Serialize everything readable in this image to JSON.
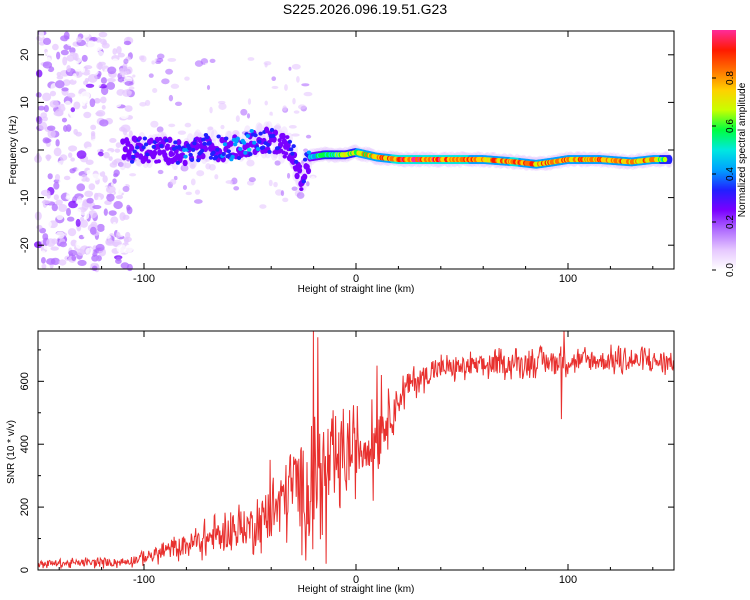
{
  "title": "S225.2026.096.19.51.G23",
  "colors": {
    "snr_line": "#e8302e",
    "colormap": [
      "#ffffff",
      "#e6c8ff",
      "#b06cff",
      "#7a00ff",
      "#2020ff",
      "#00a0ff",
      "#00e8e0",
      "#00ff40",
      "#c8ff00",
      "#ffd000",
      "#ff7000",
      "#ff1a00",
      "#ff2b9a"
    ]
  },
  "chart_data": [
    {
      "type": "heatmap",
      "name": "spectrogram",
      "xlabel": "Height of straight line (km)",
      "ylabel": "Frequency (Hz)",
      "xlim": [
        -150,
        150
      ],
      "ylim": [
        -25,
        25
      ],
      "xticks": [
        -100,
        0,
        100
      ],
      "yticks": [
        -20,
        -10,
        0,
        10,
        20
      ],
      "colorbar": {
        "label": "Normalized spectral amplitude",
        "range": [
          0,
          1
        ],
        "ticks": [
          0.0,
          0.2,
          0.4,
          0.6,
          0.8
        ]
      },
      "ridge": {
        "description": "dominant frequency ridge vs height",
        "x": [
          -110,
          -100,
          -90,
          -80,
          -70,
          -60,
          -50,
          -40,
          -35,
          -30,
          -26,
          -22,
          -15,
          -5,
          0,
          5,
          10,
          20,
          40,
          60,
          75,
          85,
          93,
          100,
          115,
          130,
          140,
          148
        ],
        "freq": [
          0,
          0,
          0,
          -0.5,
          1,
          0,
          1.5,
          2,
          1,
          0,
          -6,
          -1.5,
          -1,
          -1,
          -0.5,
          -1,
          -1.5,
          -2,
          -2,
          -2,
          -2.5,
          -3,
          -2.5,
          -2,
          -2,
          -2.5,
          -2,
          -2
        ],
        "amplitude": [
          0.25,
          0.35,
          0.3,
          0.4,
          0.35,
          0.4,
          0.45,
          0.35,
          0.3,
          0.35,
          0.25,
          0.5,
          0.6,
          0.7,
          0.75,
          0.8,
          0.85,
          0.95,
          0.95,
          0.9,
          0.92,
          0.9,
          0.85,
          0.9,
          0.9,
          0.85,
          0.85,
          0.6
        ]
      },
      "noise_region_km": [
        -150,
        -110
      ]
    },
    {
      "type": "line",
      "name": "snr",
      "xlabel": "Height of straight line (km)",
      "ylabel": "SNR (10 * v/v)",
      "xlim": [
        -150,
        150
      ],
      "ylim": [
        0,
        760
      ],
      "xticks": [
        -100,
        0,
        100
      ],
      "yticks": [
        0,
        200,
        400,
        600
      ],
      "envelope": {
        "x": [
          -150,
          -110,
          -100,
          -90,
          -80,
          -70,
          -60,
          -50,
          -40,
          -35,
          -30,
          -25,
          -20,
          -15,
          -10,
          -5,
          0,
          5,
          10,
          15,
          20,
          25,
          30,
          40,
          60,
          80,
          100,
          120,
          140,
          150
        ],
        "mean": [
          20,
          25,
          40,
          60,
          80,
          100,
          120,
          140,
          180,
          220,
          280,
          260,
          270,
          300,
          330,
          360,
          380,
          400,
          430,
          480,
          540,
          590,
          610,
          640,
          650,
          660,
          665,
          665,
          665,
          660
        ],
        "amplitude": [
          12,
          15,
          20,
          30,
          40,
          50,
          60,
          70,
          90,
          110,
          140,
          170,
          160,
          140,
          130,
          120,
          110,
          100,
          90,
          70,
          55,
          45,
          40,
          38,
          38,
          38,
          38,
          38,
          38,
          38
        ]
      },
      "spikes": [
        {
          "x": -40.5,
          "y": 350
        },
        {
          "x": -26,
          "y": 380
        },
        {
          "x": -20,
          "y": 760
        },
        {
          "x": -18,
          "y": 740
        },
        {
          "x": -14,
          "y": 20
        },
        {
          "x": -12,
          "y": 440
        },
        {
          "x": 8,
          "y": 220
        },
        {
          "x": 10,
          "y": 650
        },
        {
          "x": 12,
          "y": 620
        },
        {
          "x": 97,
          "y": 480
        },
        {
          "x": 98,
          "y": 760
        }
      ]
    }
  ]
}
